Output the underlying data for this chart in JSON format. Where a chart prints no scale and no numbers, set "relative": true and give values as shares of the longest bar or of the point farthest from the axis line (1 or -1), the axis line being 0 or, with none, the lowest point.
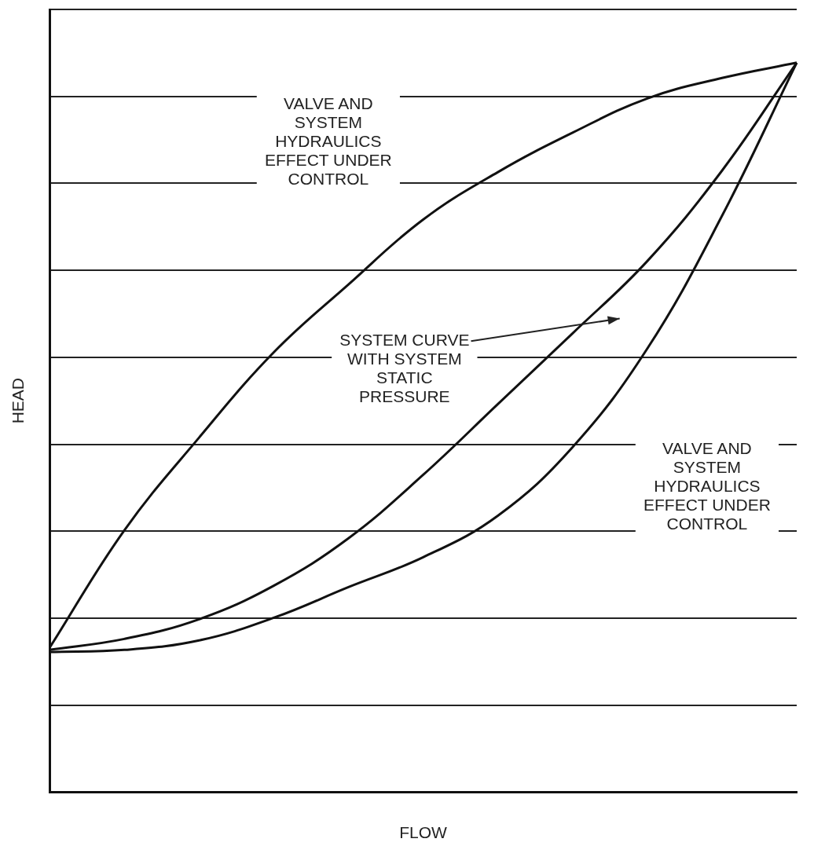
{
  "chart_data": {
    "type": "line",
    "relative": true,
    "xlabel": "FLOW",
    "ylabel": "HEAD",
    "grid": "y",
    "marker": "none",
    "line_style": "solid",
    "categories": [
      null,
      null,
      null,
      null,
      null,
      null,
      null,
      null,
      null,
      null,
      null
    ],
    "series": [
      {
        "color": "#111111",
        "values": [
          0.198,
          0.359,
          0.486,
          0.603,
          0.696,
          0.785,
          0.85,
          0.904,
          0.951,
          0.979,
          1
        ]
      },
      {
        "color": "#111111",
        "values": [
          0.195,
          0.21,
          0.237,
          0.283,
          0.348,
          0.435,
          0.532,
          0.629,
          0.728,
          0.852,
          1
        ]
      },
      {
        "color": "#111111",
        "values": [
          0.192,
          0.195,
          0.208,
          0.239,
          0.281,
          0.322,
          0.379,
          0.473,
          0.608,
          0.79,
          1
        ]
      }
    ],
    "annotations": [
      "VALVE AND\nSYSTEM\nHYDRAULICS\nEFFECT UNDER\nCONTROL",
      "SYSTEM CURVE\nWITH SYSTEM\nSTATIC\nPRESSURE",
      "VALVE AND\nSYSTEM\nHYDRAULICS\nEFFECT UNDER\nCONTROL"
    ]
  }
}
